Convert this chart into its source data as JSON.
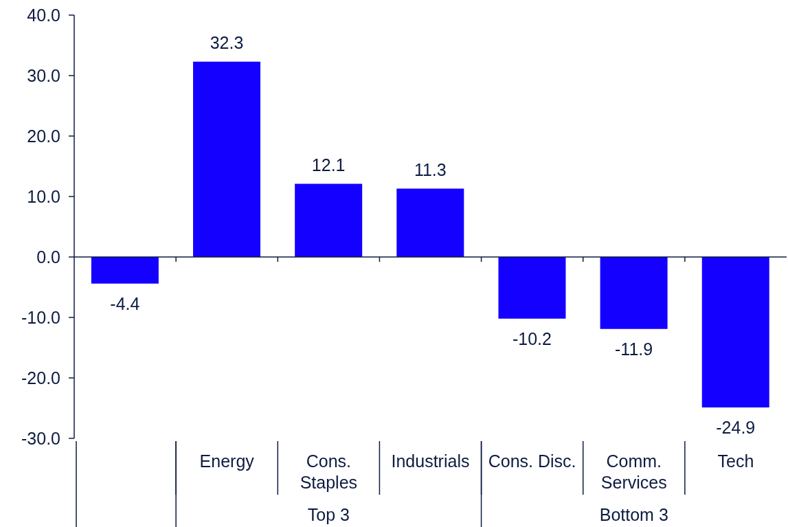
{
  "chart_data": {
    "type": "bar",
    "categories": [
      null,
      "Energy",
      "Cons. Staples",
      "Industrials",
      "Cons. Disc.",
      "Comm. Services",
      "Tech"
    ],
    "values": [
      -4.4,
      32.3,
      12.1,
      11.3,
      -10.2,
      -11.9,
      -24.9
    ],
    "color": "#1400ff",
    "ylim": [
      -30,
      40
    ],
    "yticks": [
      {
        "value": -30,
        "label": "-30.0"
      },
      {
        "value": -20,
        "label": "-20.0"
      },
      {
        "value": -10,
        "label": "-10.0"
      },
      {
        "value": 0,
        "label": "0.0"
      },
      {
        "value": 10,
        "label": "10.0"
      },
      {
        "value": 20,
        "label": "20.0"
      },
      {
        "value": 30,
        "label": "30.0"
      },
      {
        "value": 40,
        "label": "40.0"
      }
    ],
    "data_labels": true,
    "annotations": [
      "Top 3",
      "Bottom 3"
    ]
  }
}
